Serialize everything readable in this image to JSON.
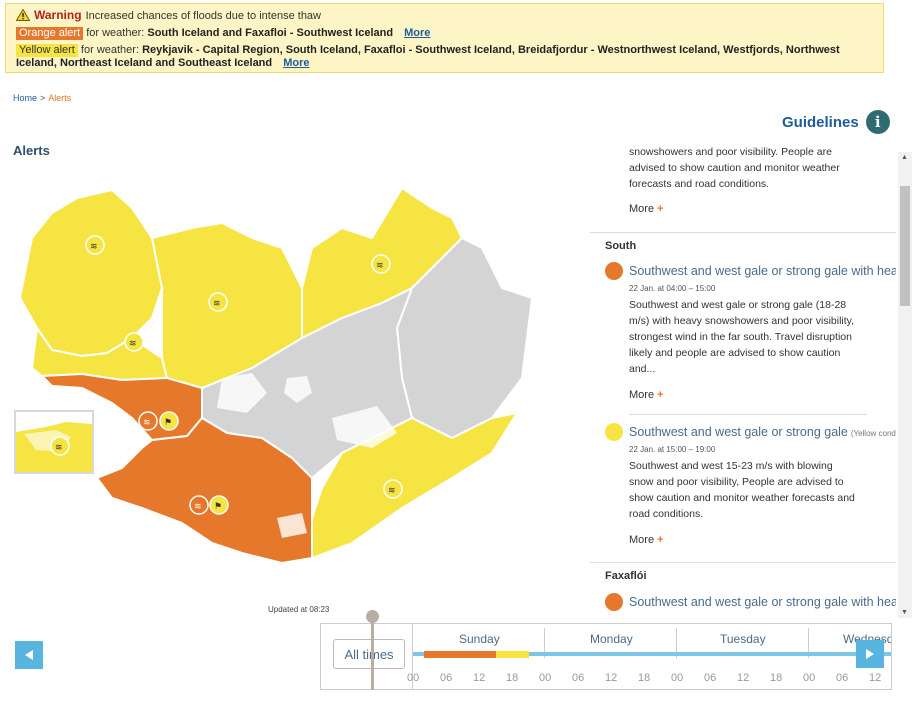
{
  "banner": {
    "warning_label": "Warning",
    "warning_text": "Increased chances of floods due to intense thaw",
    "orange_label": "Orange alert",
    "orange_for": "for weather:",
    "orange_regions": "South Iceland and Faxafloi - Southwest Iceland",
    "orange_more": "More",
    "yellow_label": "Yellow alert",
    "yellow_for": "for weather:",
    "yellow_regions": "Reykjavik - Capital Region, South Iceland, Faxafloi - Southwest Iceland, Breidafjordur - Westnorthwest Iceland, Westfjords, Northwest Iceland, Northeast Iceland and Southeast Iceland",
    "yellow_more": "More"
  },
  "breadcrumb": {
    "home": "Home",
    "sep": ">",
    "current": "Alerts"
  },
  "guidelines": {
    "label": "Guidelines",
    "icon": "i"
  },
  "page_title": "Alerts",
  "panel": {
    "top_fragment": {
      "lines": [
        "snowshowers and poor visibility. People are",
        "advised to show caution and monitor weather",
        "forecasts and road conditions."
      ],
      "more": "More"
    },
    "regions": [
      {
        "name": "South",
        "alerts": [
          {
            "level": "orange",
            "title": "Southwest and west gale or strong gale with heavy",
            "date": "22 Jan. at 04:00 – 15:00",
            "lines": [
              "Southwest and west gale or strong gale (18-28",
              "m/s) with heavy snowshowers and poor visibility,",
              "strongest wind in the far south. Travel disruption",
              "likely and people are advised to show caution",
              "and..."
            ],
            "more": "More"
          },
          {
            "level": "yellow",
            "title": "Southwest and west gale or strong gale",
            "tag": "(Yellow condit",
            "date": "22 Jan. at 15:00 – 19:00",
            "lines": [
              "Southwest and west 15-23 m/s with blowing",
              "snow and poor visibility, People are advised to",
              "show caution and monitor weather forecasts and",
              "road conditions."
            ],
            "more": "More"
          }
        ]
      },
      {
        "name": "Faxaflói",
        "alerts": [
          {
            "level": "orange",
            "title": "Southwest and west gale or strong gale with heavy"
          }
        ]
      }
    ]
  },
  "updated": "Updated at 08:23",
  "timeline": {
    "all_times": "All times",
    "days": [
      "Sunday",
      "Monday",
      "Tuesday",
      "Wednesd"
    ],
    "hours": [
      "00",
      "06",
      "12",
      "18",
      "00",
      "06",
      "12",
      "18",
      "00",
      "06",
      "12",
      "18",
      "00",
      "06",
      "12"
    ]
  },
  "colors": {
    "orange": "#e6782c",
    "yellow": "#f6e442",
    "grey": "#d4d4d4",
    "accent": "#1f5c99",
    "nav": "#58b5e0"
  }
}
